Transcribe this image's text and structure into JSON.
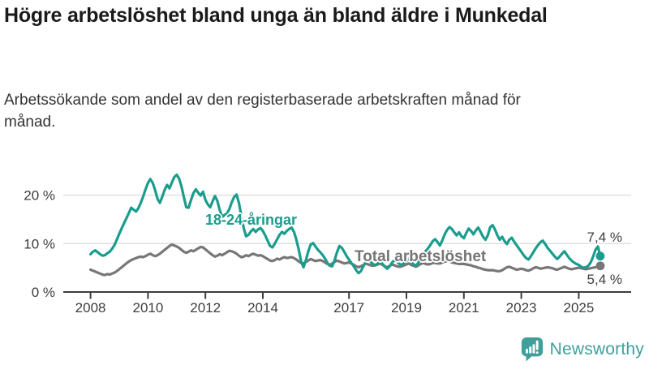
{
  "header": {
    "title": "Högre arbetslöshet bland unga än bland äldre i Munkedal",
    "subtitle": "Arbetssökande som andel av den registerbaserade arbetskraften månad för månad."
  },
  "chart_data": {
    "type": "line",
    "x_unit": "month",
    "x_start": "2008-01",
    "x_end": "2025-10",
    "x_ticks": [
      2008,
      2010,
      2012,
      2014,
      2017,
      2019,
      2021,
      2023,
      2025
    ],
    "y_ticks": [
      {
        "value": 0,
        "label": "0 %"
      },
      {
        "value": 10,
        "label": "10 %"
      },
      {
        "value": 20,
        "label": "20 %"
      }
    ],
    "ylim": [
      0,
      25
    ],
    "grid": "horizontal",
    "legend": "inline-labels",
    "series": [
      {
        "name": "18-24-åringar",
        "color": "#1A9D8D",
        "end_label": "7,4 %",
        "end_value": 7.4,
        "values": [
          7.8,
          8.3,
          8.6,
          8.2,
          7.8,
          7.5,
          7.6,
          8.0,
          8.3,
          8.9,
          9.7,
          10.8,
          12.0,
          13.1,
          14.2,
          15.2,
          16.3,
          17.4,
          17.0,
          16.6,
          17.3,
          18.4,
          19.7,
          21.2,
          22.5,
          23.3,
          22.5,
          21.0,
          19.2,
          18.4,
          19.7,
          21.1,
          22.1,
          21.4,
          22.6,
          23.7,
          24.2,
          23.4,
          21.8,
          19.6,
          17.5,
          17.4,
          19.0,
          20.4,
          21.2,
          20.5,
          19.9,
          20.7,
          19.0,
          18.1,
          17.5,
          18.7,
          19.8,
          18.8,
          16.9,
          15.5,
          15.9,
          16.2,
          17.1,
          18.5,
          19.6,
          20.1,
          18.4,
          15.8,
          13.2,
          11.5,
          11.8,
          12.5,
          13.0,
          12.4,
          12.9,
          13.2,
          12.6,
          11.7,
          10.6,
          9.5,
          9.2,
          10.0,
          10.9,
          11.8,
          12.4,
          12.0,
          12.6,
          13.0,
          13.3,
          12.4,
          10.8,
          8.7,
          6.3,
          5.1,
          6.6,
          8.4,
          9.8,
          10.1,
          9.4,
          8.7,
          8.2,
          7.6,
          6.9,
          6.0,
          5.4,
          5.3,
          6.6,
          8.2,
          9.5,
          9.1,
          8.3,
          7.4,
          6.7,
          6.0,
          5.3,
          4.5,
          3.9,
          4.3,
          5.3,
          6.2,
          6.6,
          6.2,
          5.8,
          5.5,
          5.9,
          6.3,
          5.8,
          5.2,
          4.8,
          5.3,
          6.1,
          6.6,
          6.3,
          5.8,
          5.6,
          6.0,
          6.4,
          6.8,
          6.3,
          5.7,
          5.4,
          6.1,
          7.1,
          7.9,
          8.4,
          9.0,
          9.7,
          10.5,
          10.9,
          10.3,
          9.6,
          10.7,
          11.9,
          12.8,
          13.4,
          13.0,
          12.3,
          11.7,
          12.3,
          11.5,
          11.1,
          12.2,
          13.1,
          12.6,
          11.9,
          12.7,
          13.3,
          12.4,
          11.4,
          10.8,
          11.7,
          13.4,
          13.8,
          12.9,
          11.7,
          10.8,
          11.4,
          10.5,
          9.9,
          10.8,
          11.2,
          10.4,
          9.7,
          9.0,
          8.3,
          7.6,
          7.0,
          6.7,
          7.4,
          8.2,
          9.0,
          9.7,
          10.3,
          10.6,
          9.9,
          9.1,
          8.5,
          7.9,
          7.3,
          6.8,
          7.3,
          7.9,
          8.4,
          7.7,
          7.0,
          6.5,
          6.1,
          5.8,
          5.6,
          5.2,
          5.0,
          5.1,
          5.4,
          6.1,
          7.3,
          8.7,
          9.4,
          7.4
        ]
      },
      {
        "name": "Total arbetslöshet",
        "color": "#777777",
        "end_label": "5,4 %",
        "end_value": 5.4,
        "values": [
          4.6,
          4.4,
          4.2,
          4.0,
          3.8,
          3.6,
          3.5,
          3.7,
          3.6,
          3.8,
          4.0,
          4.3,
          4.7,
          5.1,
          5.5,
          5.9,
          6.3,
          6.6,
          6.8,
          7.0,
          7.2,
          7.3,
          7.2,
          7.4,
          7.7,
          7.9,
          7.6,
          7.4,
          7.6,
          7.9,
          8.3,
          8.7,
          9.1,
          9.5,
          9.8,
          9.6,
          9.4,
          9.1,
          8.7,
          8.3,
          8.1,
          8.3,
          8.6,
          8.4,
          8.7,
          9.0,
          9.3,
          9.2,
          8.8,
          8.4,
          8.0,
          7.6,
          7.3,
          7.5,
          7.8,
          7.6,
          7.9,
          8.2,
          8.5,
          8.4,
          8.2,
          7.9,
          7.5,
          7.2,
          7.3,
          7.6,
          7.4,
          7.7,
          7.9,
          7.7,
          7.5,
          7.6,
          7.4,
          7.1,
          6.8,
          6.5,
          6.4,
          6.6,
          6.9,
          6.7,
          7.0,
          7.2,
          7.0,
          7.1,
          7.2,
          7.0,
          6.7,
          6.3,
          6.0,
          5.9,
          6.2,
          6.5,
          6.8,
          6.6,
          6.4,
          6.5,
          6.6,
          6.4,
          6.1,
          5.8,
          5.6,
          5.9,
          6.2,
          6.5,
          6.3,
          6.1,
          5.9,
          6.0,
          6.1,
          5.9,
          5.6,
          5.3,
          5.1,
          5.3,
          5.6,
          5.9,
          5.7,
          5.5,
          5.4,
          5.5,
          5.7,
          5.9,
          5.6,
          5.3,
          5.1,
          5.4,
          5.7,
          5.5,
          5.3,
          5.2,
          5.3,
          5.5,
          5.7,
          5.9,
          5.6,
          5.4,
          5.2,
          5.5,
          5.8,
          6.0,
          5.8,
          5.7,
          5.8,
          6.0,
          6.0,
          5.9,
          5.9,
          6.1,
          6.3,
          6.4,
          6.3,
          6.1,
          6.0,
          5.9,
          5.8,
          5.8,
          5.8,
          5.7,
          5.6,
          5.5,
          5.3,
          5.2,
          5.0,
          4.9,
          4.7,
          4.6,
          4.5,
          4.5,
          4.5,
          4.4,
          4.3,
          4.3,
          4.5,
          4.8,
          5.1,
          5.2,
          5.0,
          4.8,
          4.6,
          4.7,
          4.8,
          4.7,
          4.5,
          4.4,
          4.6,
          4.9,
          5.1,
          5.0,
          4.8,
          4.9,
          5.0,
          5.1,
          5.0,
          4.9,
          4.7,
          4.6,
          4.8,
          5.0,
          5.2,
          5.0,
          4.8,
          4.7,
          4.8,
          4.9,
          5.0,
          4.9,
          4.8,
          4.7,
          4.8,
          4.9,
          5.0,
          5.1,
          5.2,
          5.4
        ]
      }
    ]
  },
  "footer": {
    "brand": "Newsworthy",
    "brand_color": "#3FA09B"
  },
  "colors": {
    "title": "#1a1a1a",
    "subtitle": "#333333",
    "axis": "#3d3d3d",
    "gridline": "#dedede",
    "background": "#ffffff"
  }
}
